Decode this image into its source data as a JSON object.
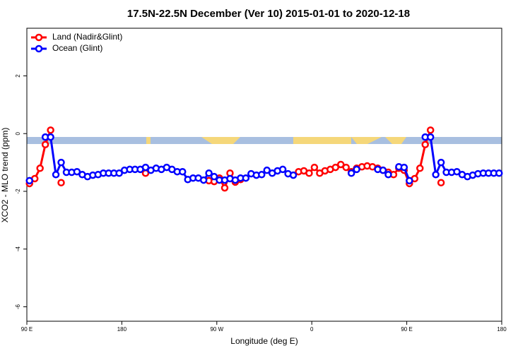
{
  "chart_data": {
    "type": "line",
    "title": "17.5N-22.5N December (Ver 10)   2015-01-01 to 2020-12-18",
    "x_label": "Longitude (deg E)",
    "y_label": "XCO2 - MLO trend (ppm)",
    "xlim": [
      90,
      540
    ],
    "ylim": [
      -6.5,
      3.65
    ],
    "xticks": [
      {
        "value": 90,
        "label": "90 E"
      },
      {
        "value": 180,
        "label": "180"
      },
      {
        "value": 270,
        "label": "90 W"
      },
      {
        "value": 360,
        "label": "0"
      },
      {
        "value": 450,
        "label": "90 E"
      },
      {
        "value": 540,
        "label": "180"
      }
    ],
    "yticks": [
      -6,
      -4,
      -2,
      0,
      2
    ],
    "legend": "top-left",
    "x": [
      92.5,
      97.5,
      102.5,
      107.5,
      112.5,
      117.5,
      122.5,
      127.5,
      132.5,
      137.5,
      142.5,
      147.5,
      152.5,
      157.5,
      162.5,
      167.5,
      172.5,
      177.5,
      182.5,
      187.5,
      192.5,
      197.5,
      202.5,
      207.5,
      212.5,
      217.5,
      222.5,
      227.5,
      232.5,
      237.5,
      242.5,
      247.5,
      252.5,
      257.5,
      262.5,
      267.5,
      272.5,
      277.5,
      282.5,
      287.5,
      292.5,
      297.5,
      302.5,
      307.5,
      312.5,
      317.5,
      322.5,
      327.5,
      332.5,
      337.5,
      342.5,
      347.5,
      352.5,
      357.5,
      362.5,
      367.5,
      372.5,
      377.5,
      382.5,
      387.5,
      392.5,
      397.5,
      402.5,
      407.5,
      412.5,
      417.5,
      422.5,
      427.5,
      432.5,
      437.5,
      442.5,
      447.5,
      452.5,
      457.5,
      462.5,
      467.5,
      472.5,
      477.5,
      482.5,
      487.5,
      492.5,
      497.5,
      502.5,
      507.5,
      512.5,
      517.5,
      522.5,
      527.5,
      532.5,
      537.5
    ],
    "series": [
      {
        "name": "Land (Nadir&Glint)",
        "color": "#ff0000",
        "values": [
          -1.73,
          -1.56,
          -1.2,
          -0.38,
          0.12,
          null,
          -1.7,
          null,
          null,
          null,
          null,
          null,
          null,
          null,
          null,
          null,
          null,
          null,
          null,
          null,
          null,
          null,
          -1.37,
          null,
          null,
          null,
          null,
          null,
          null,
          null,
          null,
          null,
          null,
          null,
          -1.63,
          -1.66,
          -1.54,
          -1.88,
          -1.37,
          -1.68,
          -1.59,
          null,
          null,
          null,
          null,
          null,
          null,
          null,
          null,
          null,
          null,
          -1.32,
          -1.29,
          -1.37,
          -1.17,
          -1.37,
          -1.29,
          -1.24,
          -1.17,
          -1.07,
          -1.17,
          -1.32,
          -1.2,
          -1.15,
          -1.12,
          -1.15,
          -1.2,
          -1.27,
          -1.34,
          -1.42,
          -1.2,
          -1.27,
          -1.73,
          -1.56,
          -1.2,
          -0.38,
          0.12,
          null,
          -1.7,
          null,
          null,
          null,
          null,
          null,
          null,
          null,
          null,
          null,
          null,
          null
        ]
      },
      {
        "name": "Ocean (Glint)",
        "color": "#0000ff",
        "values": [
          -1.63,
          null,
          null,
          -0.12,
          -0.12,
          -1.42,
          -1.0,
          -1.34,
          -1.34,
          -1.32,
          -1.42,
          -1.49,
          -1.44,
          -1.42,
          -1.37,
          -1.37,
          -1.37,
          -1.37,
          -1.27,
          -1.24,
          -1.24,
          -1.24,
          -1.17,
          -1.27,
          -1.2,
          -1.24,
          -1.17,
          -1.24,
          -1.32,
          -1.32,
          -1.59,
          -1.54,
          -1.54,
          -1.61,
          -1.37,
          -1.49,
          -1.61,
          -1.61,
          -1.56,
          -1.61,
          -1.54,
          -1.54,
          -1.39,
          -1.44,
          -1.42,
          -1.27,
          -1.37,
          -1.29,
          -1.24,
          -1.39,
          -1.44,
          null,
          null,
          null,
          null,
          null,
          null,
          null,
          null,
          null,
          null,
          -1.37,
          -1.24,
          null,
          null,
          null,
          -1.24,
          -1.27,
          -1.42,
          null,
          -1.15,
          -1.17,
          -1.63,
          null,
          null,
          -0.12,
          -0.12,
          -1.42,
          -1.0,
          -1.34,
          -1.34,
          -1.32,
          -1.42,
          -1.49,
          -1.44,
          -1.39,
          -1.37,
          -1.37,
          -1.37,
          -1.37
        ]
      }
    ]
  }
}
